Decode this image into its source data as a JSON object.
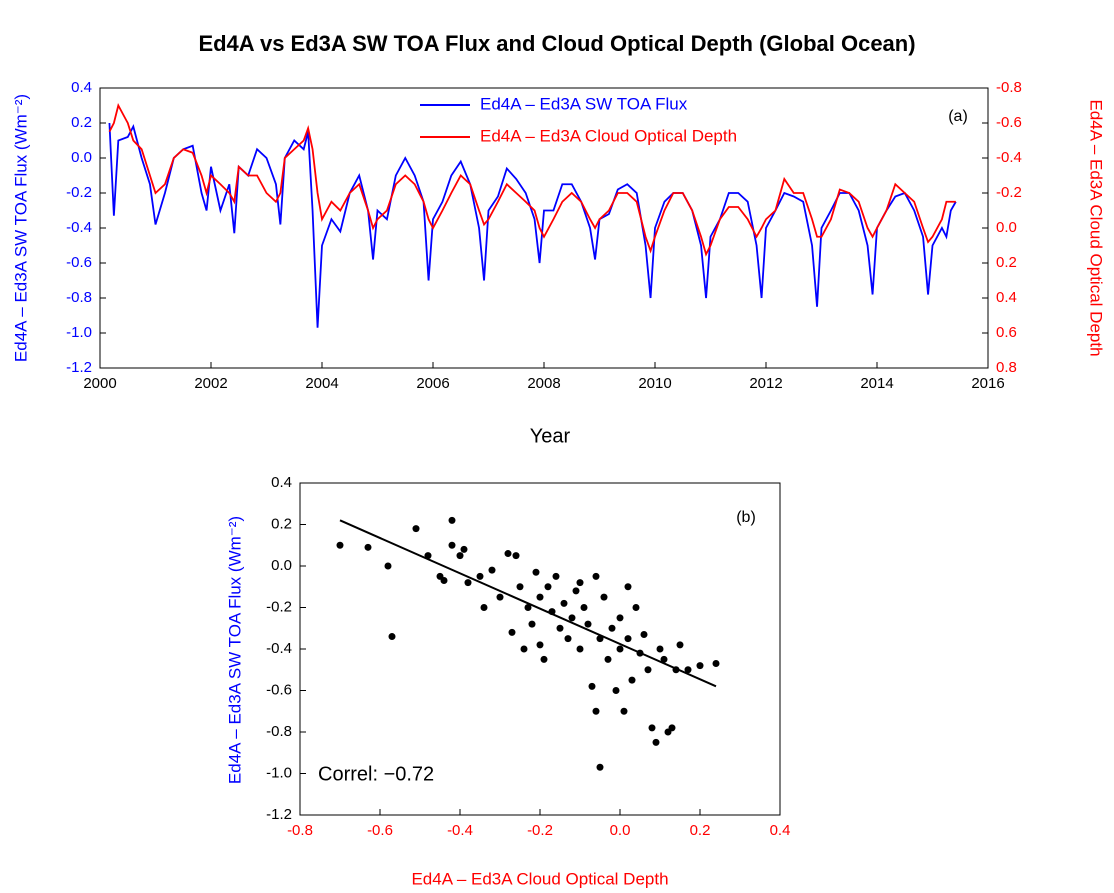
{
  "chart_data": [
    {
      "type": "line",
      "title": "Ed4A vs Ed3A SW TOA Flux and Cloud Optical Depth (Global Ocean)",
      "panel_label": "(a)",
      "xlabel": "Year",
      "ylabel": "Ed4A – Ed3A SW TOA Flux (Wm⁻²)",
      "y2label": "Ed4A – Ed3A Cloud Optical Depth",
      "xlabel_color": "#000000",
      "ylabel_color": "#0000ff",
      "y2label_color": "#ff0000",
      "xlim": [
        2000,
        2016
      ],
      "xticks": [
        2000,
        2002,
        2004,
        2006,
        2008,
        2010,
        2012,
        2014,
        2016
      ],
      "ylim": [
        -1.2,
        0.4
      ],
      "yticks": [
        {
          "value": -1.2,
          "label": "-1.2"
        },
        {
          "value": -1,
          "label": "-1.0"
        },
        -0.8,
        -0.6,
        -0.4,
        -0.2,
        {
          "value": 0,
          "label": "0.0"
        },
        0.2,
        0.4
      ],
      "y2lim": [
        0.8,
        -0.8
      ],
      "y2ticks": [
        -0.8,
        -0.6,
        -0.4,
        -0.2,
        {
          "value": 0,
          "label": "0.0"
        },
        0.2,
        0.4,
        0.6,
        0.8
      ],
      "legend": "upper center",
      "x": [
        2000.17,
        2000.25,
        2000.33,
        2000.5,
        2000.6,
        2000.75,
        2000.9,
        2001.0,
        2001.17,
        2001.33,
        2001.5,
        2001.67,
        2001.83,
        2001.92,
        2002.0,
        2002.17,
        2002.33,
        2002.42,
        2002.5,
        2002.67,
        2002.83,
        2003.0,
        2003.17,
        2003.25,
        2003.33,
        2003.5,
        2003.67,
        2003.75,
        2003.83,
        2003.92,
        2004.0,
        2004.17,
        2004.33,
        2004.5,
        2004.67,
        2004.83,
        2004.92,
        2005.0,
        2005.17,
        2005.33,
        2005.5,
        2005.67,
        2005.83,
        2005.92,
        2006.0,
        2006.17,
        2006.33,
        2006.5,
        2006.67,
        2006.83,
        2006.92,
        2007.0,
        2007.17,
        2007.33,
        2007.5,
        2007.67,
        2007.83,
        2007.92,
        2008.0,
        2008.17,
        2008.33,
        2008.5,
        2008.67,
        2008.83,
        2008.92,
        2009.0,
        2009.17,
        2009.33,
        2009.5,
        2009.67,
        2009.83,
        2009.92,
        2010.0,
        2010.17,
        2010.33,
        2010.5,
        2010.67,
        2010.83,
        2010.92,
        2011.0,
        2011.17,
        2011.33,
        2011.5,
        2011.67,
        2011.83,
        2011.92,
        2012.0,
        2012.17,
        2012.33,
        2012.5,
        2012.67,
        2012.83,
        2012.92,
        2013.0,
        2013.17,
        2013.33,
        2013.5,
        2013.67,
        2013.83,
        2013.92,
        2014.0,
        2014.17,
        2014.33,
        2014.5,
        2014.67,
        2014.83,
        2014.92,
        2015.0,
        2015.17,
        2015.25,
        2015.33,
        2015.42
      ],
      "series": [
        {
          "name": "Ed4A – Ed3A SW TOA Flux",
          "color": "#0000ff",
          "axis": "y",
          "values": [
            0.2,
            -0.33,
            0.1,
            0.12,
            0.18,
            0,
            -0.15,
            -0.38,
            -0.2,
            0,
            0.05,
            0.07,
            -0.2,
            -0.3,
            -0.05,
            -0.3,
            -0.15,
            -0.43,
            -0.05,
            -0.1,
            0.05,
            0,
            -0.15,
            -0.38,
            0,
            0.1,
            0.05,
            0.15,
            -0.3,
            -0.97,
            -0.5,
            -0.35,
            -0.42,
            -0.2,
            -0.1,
            -0.3,
            -0.58,
            -0.3,
            -0.35,
            -0.1,
            0,
            -0.1,
            -0.25,
            -0.7,
            -0.35,
            -0.25,
            -0.1,
            -0.02,
            -0.15,
            -0.4,
            -0.7,
            -0.3,
            -0.22,
            -0.06,
            -0.12,
            -0.2,
            -0.35,
            -0.6,
            -0.3,
            -0.3,
            -0.15,
            -0.15,
            -0.25,
            -0.4,
            -0.58,
            -0.35,
            -0.32,
            -0.18,
            -0.15,
            -0.2,
            -0.5,
            -0.8,
            -0.4,
            -0.25,
            -0.2,
            -0.2,
            -0.3,
            -0.5,
            -0.8,
            -0.45,
            -0.35,
            -0.2,
            -0.2,
            -0.25,
            -0.5,
            -0.8,
            -0.4,
            -0.3,
            -0.2,
            -0.22,
            -0.25,
            -0.5,
            -0.85,
            -0.4,
            -0.3,
            -0.2,
            -0.2,
            -0.3,
            -0.5,
            -0.78,
            -0.4,
            -0.3,
            -0.22,
            -0.2,
            -0.3,
            -0.45,
            -0.78,
            -0.5,
            -0.4,
            -0.45,
            -0.3,
            -0.25
          ]
        },
        {
          "name": "Ed4A – Ed3A Cloud Optical Depth",
          "color": "#ff0000",
          "axis": "y2",
          "values": [
            -0.55,
            -0.6,
            -0.7,
            -0.6,
            -0.5,
            -0.45,
            -0.3,
            -0.2,
            -0.25,
            -0.4,
            -0.45,
            -0.43,
            -0.3,
            -0.2,
            -0.3,
            -0.25,
            -0.2,
            -0.15,
            -0.35,
            -0.3,
            -0.3,
            -0.2,
            -0.15,
            -0.2,
            -0.4,
            -0.45,
            -0.5,
            -0.57,
            -0.45,
            -0.2,
            -0.05,
            -0.15,
            -0.1,
            -0.2,
            -0.25,
            -0.1,
            0,
            -0.05,
            -0.1,
            -0.25,
            -0.3,
            -0.25,
            -0.15,
            -0.05,
            0,
            -0.1,
            -0.2,
            -0.3,
            -0.25,
            -0.1,
            -0.02,
            -0.05,
            -0.15,
            -0.25,
            -0.2,
            -0.15,
            -0.1,
            0,
            0.05,
            -0.05,
            -0.15,
            -0.2,
            -0.15,
            -0.05,
            0,
            -0.05,
            -0.1,
            -0.2,
            -0.2,
            -0.15,
            0.05,
            0.13,
            0.05,
            -0.1,
            -0.2,
            -0.2,
            -0.1,
            0.05,
            0.15,
            0.1,
            -0.05,
            -0.12,
            -0.12,
            -0.05,
            0.05,
            0,
            -0.05,
            -0.1,
            -0.28,
            -0.2,
            -0.2,
            -0.05,
            0.05,
            0.05,
            -0.05,
            -0.22,
            -0.2,
            -0.15,
            0,
            0.05,
            0,
            -0.1,
            -0.25,
            -0.2,
            -0.15,
            0,
            0.08,
            0.05,
            -0.05,
            -0.15,
            -0.15,
            -0.15
          ]
        }
      ]
    },
    {
      "type": "scatter",
      "panel_label": "(b)",
      "annotation": "Correl: −0.72",
      "xlabel": "Ed4A – Ed3A Cloud Optical Depth",
      "ylabel": "Ed4A – Ed3A SW TOA Flux (Wm⁻²)",
      "xlabel_color": "#ff0000",
      "ylabel_color": "#0000ff",
      "xlim": [
        -0.8,
        0.4
      ],
      "xticks": [
        -0.8,
        -0.6,
        -0.4,
        -0.2,
        {
          "value": 0,
          "label": "0.0"
        },
        0.2,
        0.4
      ],
      "ylim": [
        -1.2,
        0.4
      ],
      "yticks": [
        {
          "value": -1.2,
          "label": "-1.2"
        },
        {
          "value": -1,
          "label": "-1.0"
        },
        -0.8,
        -0.6,
        -0.4,
        -0.2,
        {
          "value": 0,
          "label": "0.0"
        },
        0.2,
        0.4
      ],
      "color": "#000000",
      "x": [
        -0.7,
        -0.63,
        -0.58,
        -0.57,
        -0.51,
        -0.48,
        -0.45,
        -0.44,
        -0.42,
        -0.42,
        -0.4,
        -0.39,
        -0.38,
        -0.35,
        -0.34,
        -0.32,
        -0.3,
        -0.28,
        -0.27,
        -0.26,
        -0.25,
        -0.24,
        -0.23,
        -0.22,
        -0.21,
        -0.2,
        -0.19,
        -0.18,
        -0.17,
        -0.16,
        -0.15,
        -0.14,
        -0.13,
        -0.12,
        -0.11,
        -0.1,
        -0.09,
        -0.08,
        -0.07,
        -0.06,
        -0.05,
        -0.05,
        -0.04,
        -0.03,
        -0.02,
        -0.01,
        0,
        0,
        0.01,
        0.02,
        0.03,
        0.04,
        0.05,
        0.06,
        0.07,
        0.08,
        0.09,
        0.1,
        0.11,
        0.12,
        0.13,
        0.14,
        0.15,
        0.17,
        0.2,
        0.24,
        -0.06,
        0.02,
        -0.1,
        -0.2
      ],
      "y": [
        0.1,
        0.09,
        0,
        -0.34,
        0.18,
        0.05,
        -0.05,
        -0.07,
        0.22,
        0.1,
        0.05,
        0.08,
        -0.08,
        -0.05,
        -0.2,
        -0.02,
        -0.15,
        0.06,
        -0.32,
        0.05,
        -0.1,
        -0.4,
        -0.2,
        -0.28,
        -0.03,
        -0.15,
        -0.45,
        -0.1,
        -0.22,
        -0.05,
        -0.3,
        -0.18,
        -0.35,
        -0.25,
        -0.12,
        -0.4,
        -0.2,
        -0.28,
        -0.58,
        -0.05,
        -0.35,
        -0.97,
        -0.15,
        -0.45,
        -0.3,
        -0.6,
        -0.25,
        -0.4,
        -0.7,
        -0.35,
        -0.55,
        -0.2,
        -0.42,
        -0.33,
        -0.5,
        -0.78,
        -0.85,
        -0.4,
        -0.45,
        -0.8,
        -0.78,
        -0.5,
        -0.38,
        -0.5,
        -0.48,
        -0.47,
        -0.7,
        -0.1,
        -0.08,
        -0.38
      ],
      "fit": {
        "color": "#000000",
        "x": [
          -0.7,
          0.24
        ],
        "y": [
          0.22,
          -0.58
        ]
      }
    }
  ]
}
